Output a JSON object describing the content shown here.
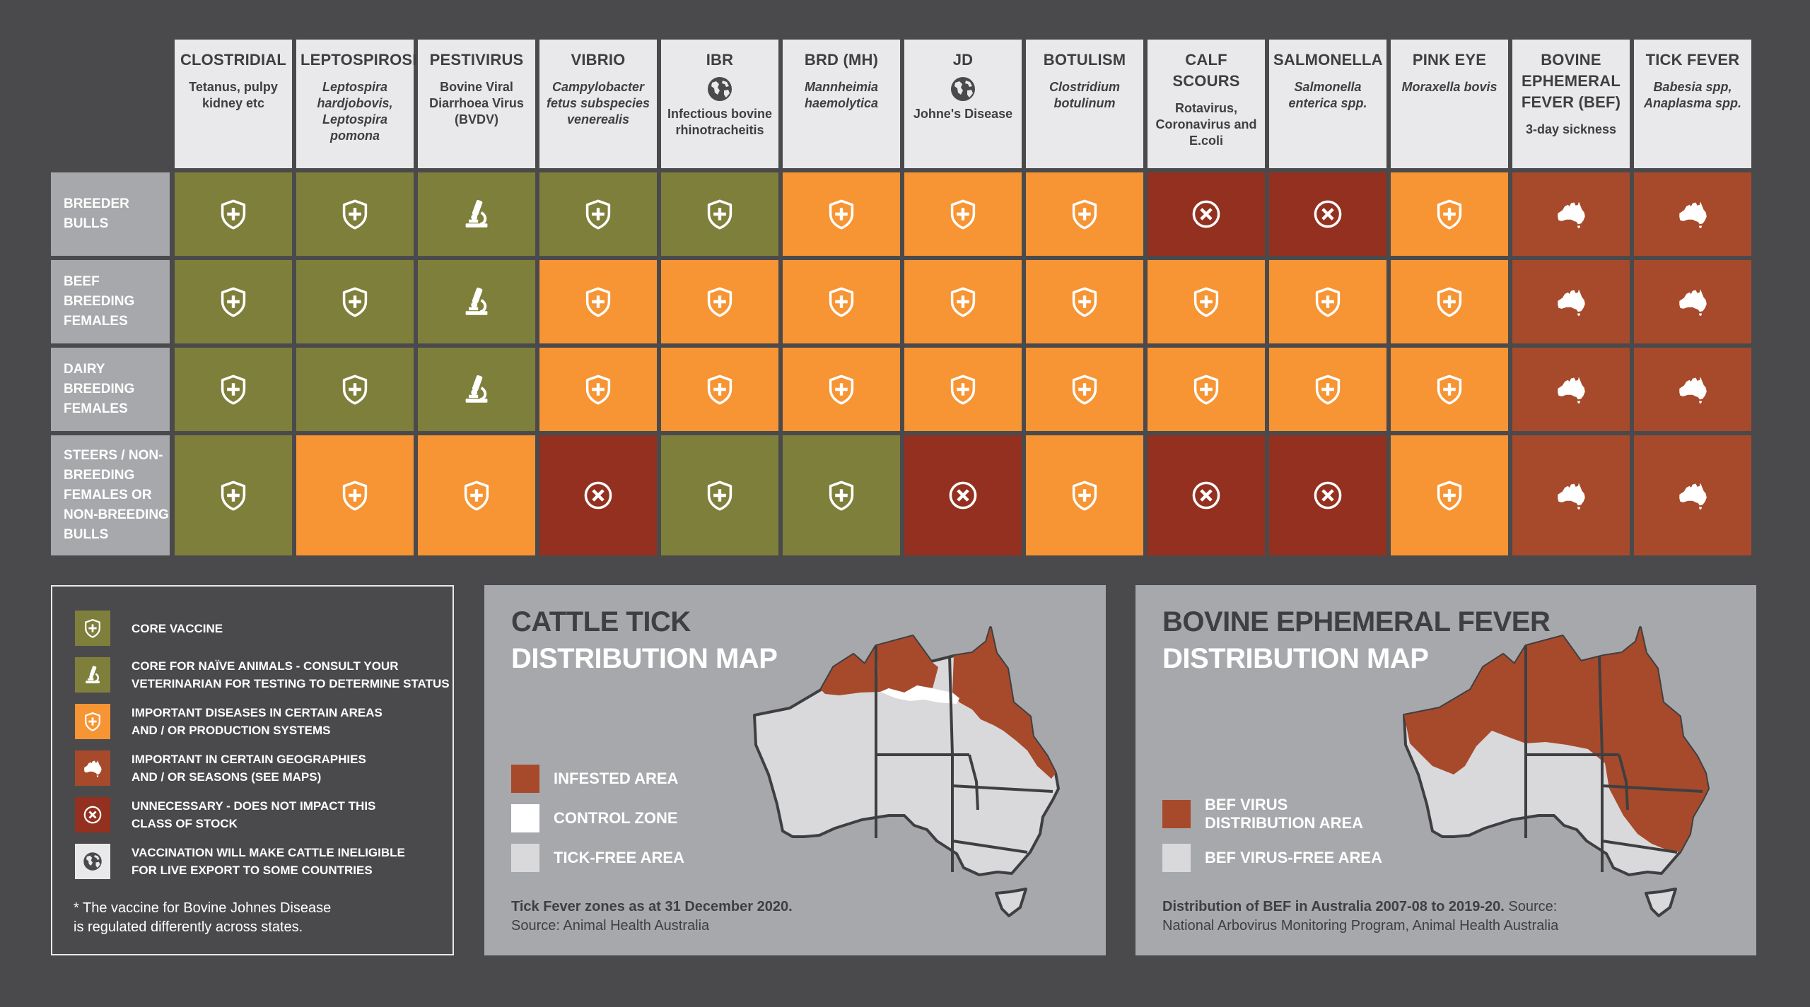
{
  "colors": {
    "background": "#4a4a4c",
    "core": "#7f7f3c",
    "important_areas": "#f79433",
    "geographies": "#a74a2b",
    "unnecessary": "#94301f",
    "header_bg": "#e9e9eb",
    "row_label_bg": "#a7a8ab",
    "tick_free": "#d9d9db",
    "control_zone": "#ffffff"
  },
  "columns": [
    {
      "title": "CLOSTRIDIAL",
      "sub": "Tetanus, pulpy kidney etc",
      "italic": false,
      "globe": false
    },
    {
      "title": "LEPTOSPIROSIS",
      "sub": "Leptospira hardjobovis, Leptospira pomona",
      "italic": true,
      "globe": false
    },
    {
      "title": "PESTIVIRUS",
      "sub": "Bovine Viral Diarrhoea Virus (BVDV)",
      "italic": false,
      "globe": false
    },
    {
      "title": "VIBRIO",
      "sub": "Campylobacter fetus subspecies venerealis",
      "italic": true,
      "globe": false
    },
    {
      "title": "IBR",
      "sub": "Infectious bovine rhinotracheitis",
      "italic": false,
      "globe": true
    },
    {
      "title": "BRD (MH)",
      "sub": "Mannheimia haemolytica",
      "italic": true,
      "globe": false
    },
    {
      "title": "JD",
      "sub": "Johne's Disease",
      "italic": false,
      "globe": true
    },
    {
      "title": "BOTULISM",
      "sub": "Clostridium botulinum",
      "italic": true,
      "globe": false
    },
    {
      "title": "CALF SCOURS",
      "sub": "Rotavirus, Coronavirus and E.coli",
      "italic": false,
      "globe": false
    },
    {
      "title": "SALMONELLA",
      "sub": "Salmonella enterica spp.",
      "italic": true,
      "globe": false
    },
    {
      "title": "PINK EYE",
      "sub": "Moraxella bovis",
      "italic": true,
      "globe": false
    },
    {
      "title": "BOVINE EPHEMERAL FEVER (BEF)",
      "sub": "3-day sickness",
      "italic": false,
      "globe": false
    },
    {
      "title": "TICK FEVER",
      "sub": "Babesia spp, Anaplasma spp.",
      "italic": true,
      "globe": false
    }
  ],
  "rows": [
    {
      "label": "BREEDER BULLS",
      "cells": [
        "core",
        "core",
        "naive",
        "core",
        "core",
        "important",
        "important",
        "important",
        "unnecessary",
        "unnecessary",
        "important",
        "geo",
        "geo"
      ]
    },
    {
      "label": "BEEF BREEDING FEMALES",
      "cells": [
        "core",
        "core",
        "naive",
        "important",
        "important",
        "important",
        "important",
        "important",
        "important",
        "important",
        "important",
        "geo",
        "geo"
      ]
    },
    {
      "label": "DAIRY BREEDING FEMALES",
      "cells": [
        "core",
        "core",
        "naive",
        "important",
        "important",
        "important",
        "important",
        "important",
        "important",
        "important",
        "important",
        "geo",
        "geo"
      ]
    },
    {
      "label": "STEERS / NON-BREEDING FEMALES OR NON-BREEDING BULLS",
      "cells": [
        "core",
        "important",
        "important",
        "unnecessary",
        "core",
        "core",
        "unnecessary",
        "important",
        "unnecessary",
        "unnecessary",
        "important",
        "geo",
        "geo"
      ]
    }
  ],
  "legend": {
    "items": [
      {
        "key": "core",
        "icon": "shield-plus-icon",
        "text": "CORE VACCINE"
      },
      {
        "key": "naive",
        "icon": "microscope-icon",
        "text": "CORE FOR NAÏVE ANIMALS - CONSULT YOUR\nVETERINARIAN FOR TESTING TO DETERMINE STATUS"
      },
      {
        "key": "important",
        "icon": "shield-plus-icon",
        "text": "IMPORTANT DISEASES IN CERTAIN AREAS\nAND / OR PRODUCTION SYSTEMS"
      },
      {
        "key": "geo",
        "icon": "australia-icon",
        "text": "IMPORTANT IN CERTAIN GEOGRAPHIES\nAND / OR SEASONS (SEE MAPS)"
      },
      {
        "key": "unnecessary",
        "icon": "x-circle-icon",
        "text": "UNNECESSARY - DOES NOT IMPACT THIS\nCLASS OF STOCK"
      },
      {
        "key": "export",
        "icon": "globe-icon",
        "text": "VACCINATION WILL MAKE CATTLE INELIGIBLE\nFOR LIVE EXPORT TO SOME COUNTRIES"
      }
    ],
    "note": "* The vaccine for Bovine Johnes Disease\n   is regulated differently across states."
  },
  "tick_map": {
    "title_line1": "CATTLE TICK",
    "title_line2": "DISTRIBUTION MAP",
    "key": [
      {
        "label": "INFESTED AREA",
        "color": "#a74a2b"
      },
      {
        "label": "CONTROL ZONE",
        "color": "#ffffff"
      },
      {
        "label": "TICK-FREE AREA",
        "color": "#d9d9db"
      }
    ],
    "source_bold": "Tick Fever zones as at 31 December 2020.",
    "source": "Source: Animal Health Australia"
  },
  "bef_map": {
    "title_line1": "BOVINE EPHEMERAL FEVER",
    "title_line2": "DISTRIBUTION MAP",
    "key": [
      {
        "label": "BEF VIRUS\nDISTRIBUTION AREA",
        "color": "#a74a2b"
      },
      {
        "label": "BEF VIRUS-FREE AREA",
        "color": "#d9d9db"
      }
    ],
    "source_bold": "Distribution of BEF in Australia 2007-08 to 2019-20.",
    "source": " Source:\nNational Arbovirus Monitoring Program, Animal Health Australia"
  }
}
